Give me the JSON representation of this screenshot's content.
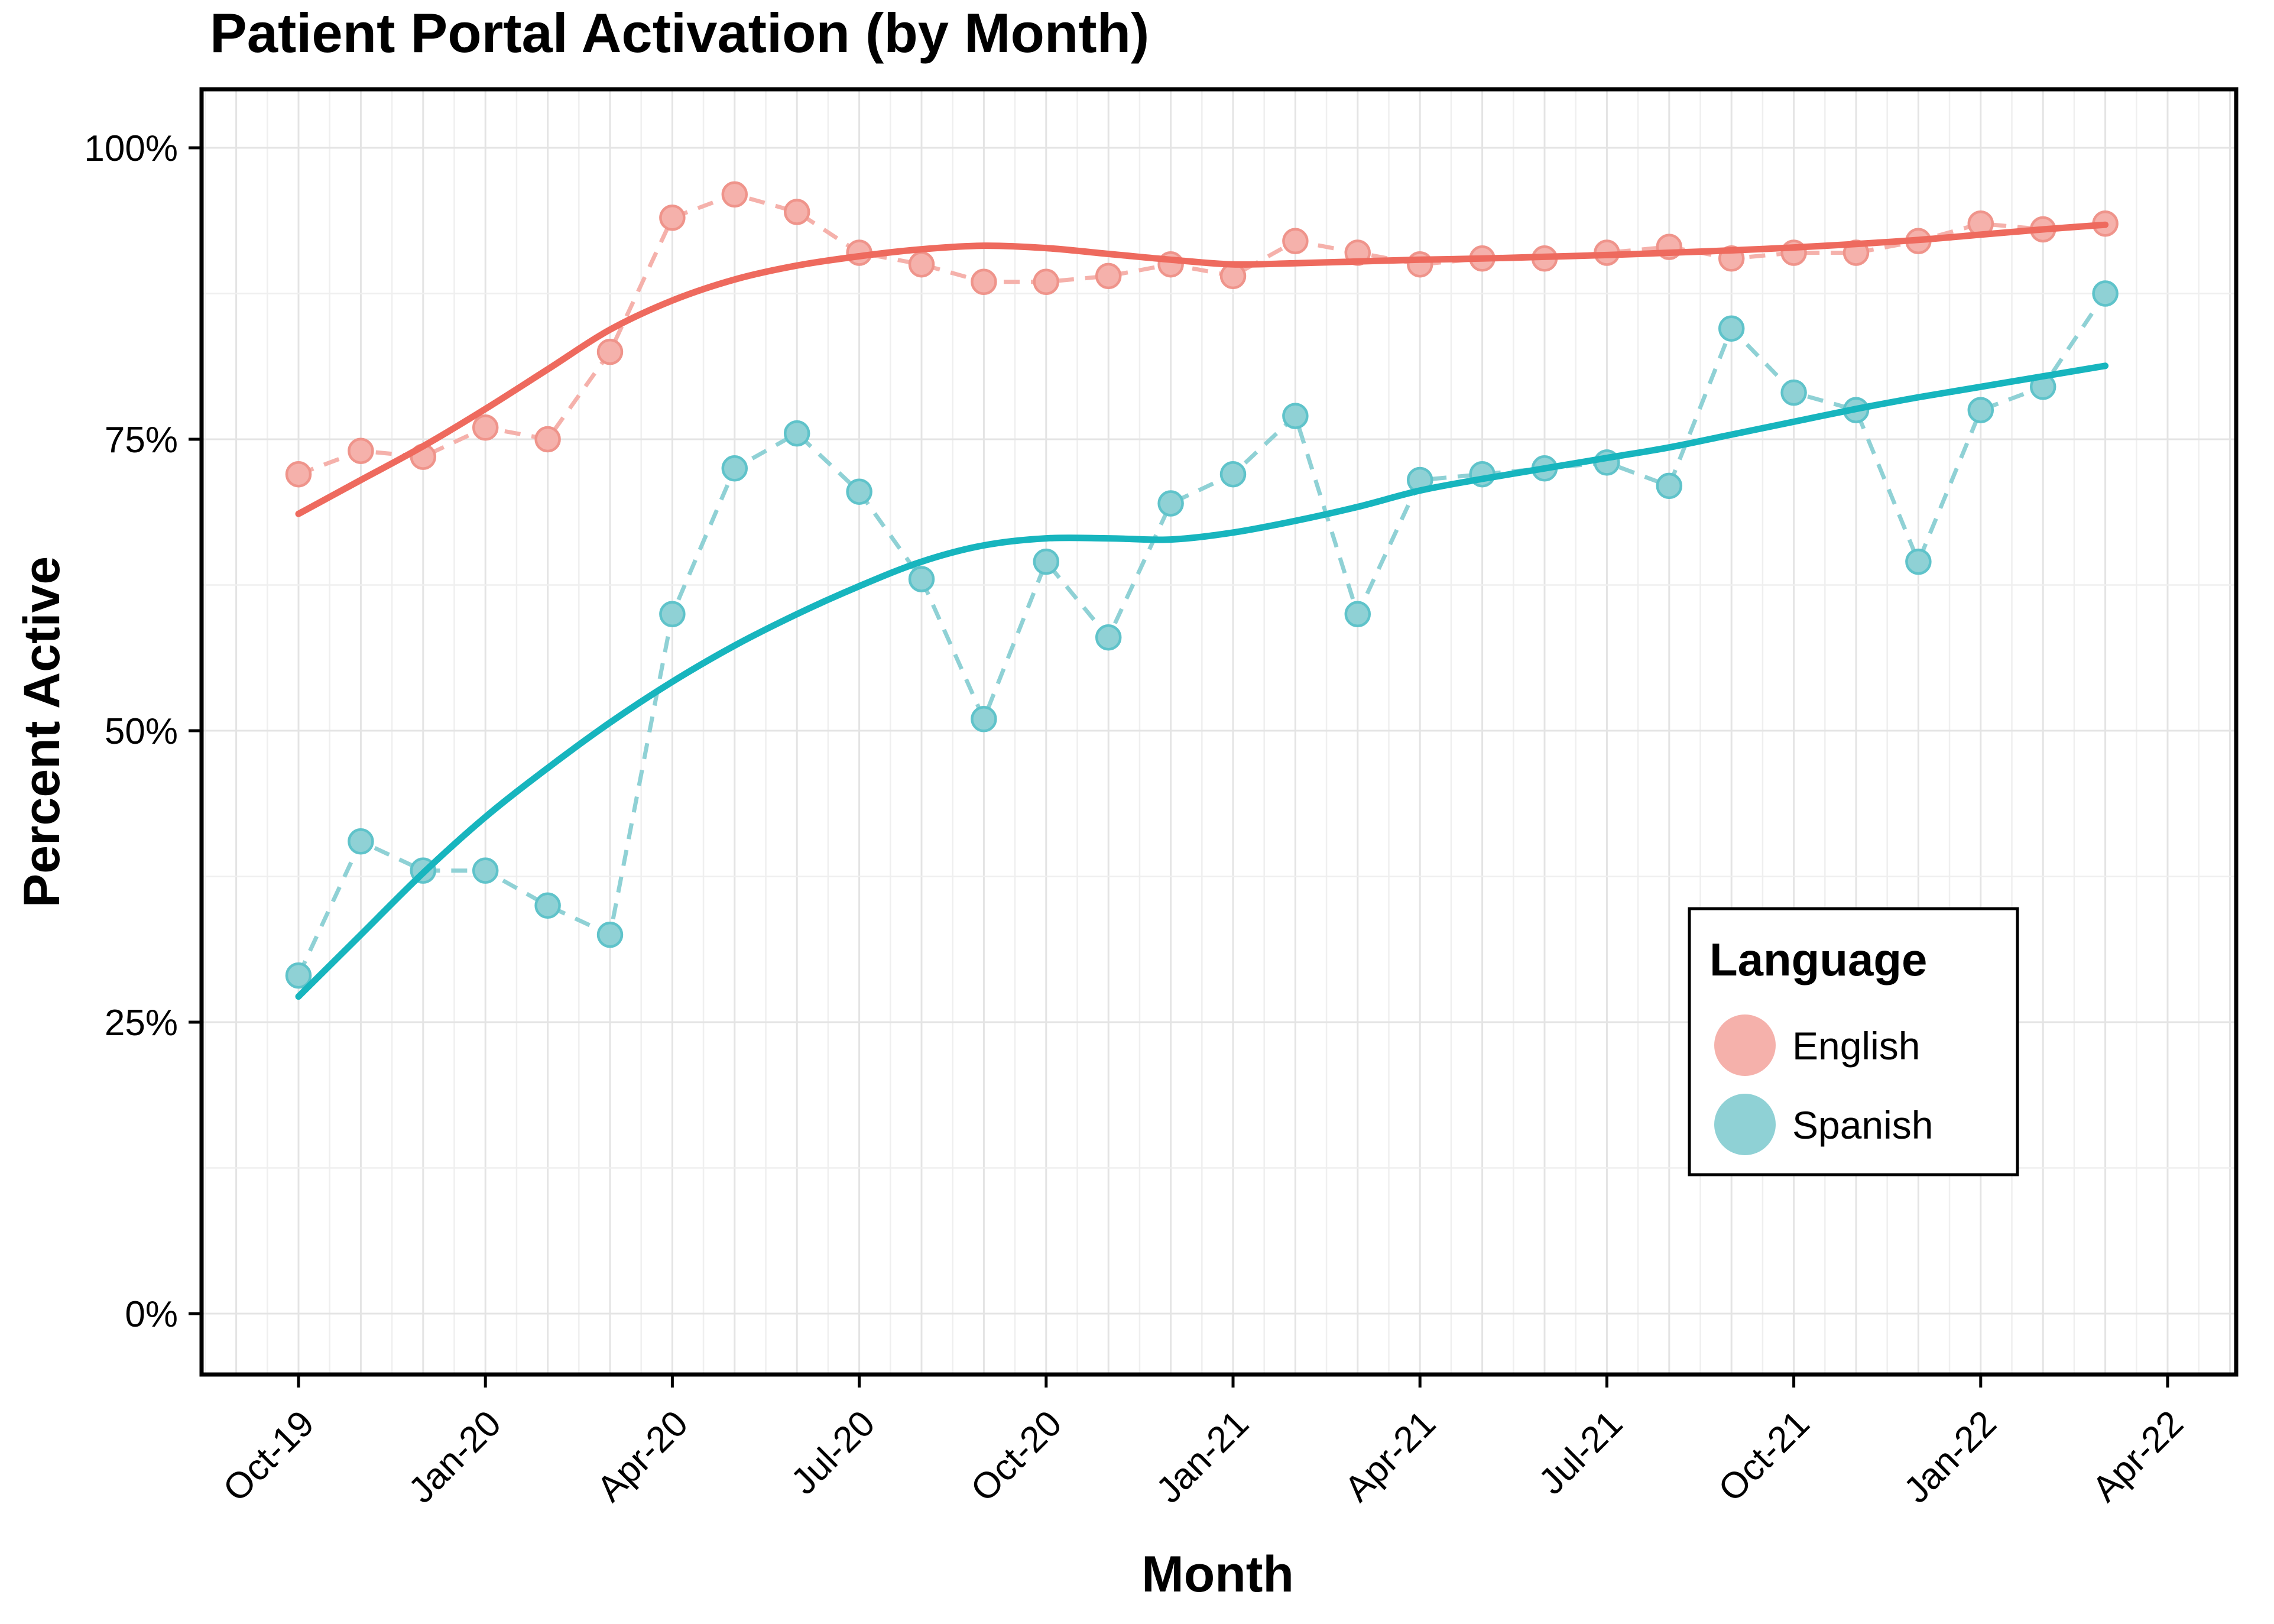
{
  "title": "Patient Portal Activation (by Month)",
  "x_axis": {
    "label": "Month"
  },
  "y_axis": {
    "label": "Percent Active"
  },
  "legend": {
    "title": "Language",
    "entries": [
      {
        "label": "English",
        "series": "English"
      },
      {
        "label": "Spanish",
        "series": "Spanish"
      }
    ],
    "position": "right-center"
  },
  "chart_data": {
    "type": "line",
    "title": "Patient Portal Activation (by Month)",
    "xlabel": "Month",
    "ylabel": "Percent Active",
    "ylim": [
      0,
      100
    ],
    "grid": "on",
    "y_tick_values": [
      0,
      25,
      50,
      75,
      100
    ],
    "y_tick_labels": [
      "0%",
      "25%",
      "50%",
      "75%",
      "100%"
    ],
    "x_tick_month_indices": [
      0,
      3,
      6,
      9,
      12,
      15,
      18,
      21,
      24,
      27,
      30
    ],
    "x_tick_labels": [
      "Oct-19",
      "Jan-20",
      "Apr-20",
      "Jul-20",
      "Oct-20",
      "Jan-21",
      "Apr-21",
      "Jul-21",
      "Oct-21",
      "Jan-22",
      "Apr-22"
    ],
    "categories": [
      "Oct-19",
      "Nov-19",
      "Dec-19",
      "Jan-20",
      "Feb-20",
      "Mar-20",
      "Apr-20",
      "May-20",
      "Jun-20",
      "Jul-20",
      "Aug-20",
      "Sep-20",
      "Oct-20",
      "Nov-20",
      "Dec-20",
      "Jan-21",
      "Feb-21",
      "Mar-21",
      "Apr-21",
      "May-21",
      "Jun-21",
      "Jul-21",
      "Aug-21",
      "Sep-21",
      "Oct-21",
      "Nov-21",
      "Dec-21",
      "Jan-22",
      "Feb-22",
      "Mar-22"
    ],
    "series": [
      {
        "name": "English",
        "points": [
          72,
          74,
          73.5,
          76,
          75,
          82.5,
          94,
          96,
          94.5,
          91,
          90,
          88.5,
          88.5,
          89,
          90,
          89,
          92,
          91,
          90,
          90.5,
          90.5,
          91,
          91.5,
          90.5,
          91,
          91,
          92,
          93.5,
          93,
          93.5
        ],
        "trend": [
          68.6,
          71.5,
          74.4,
          77.6,
          81.0,
          84.4,
          86.9,
          88.7,
          89.9,
          90.7,
          91.3,
          91.6,
          91.4,
          90.9,
          90.4,
          90.0,
          90.1,
          90.25,
          90.4,
          90.5,
          90.65,
          90.8,
          91.0,
          91.2,
          91.45,
          91.75,
          92.1,
          92.55,
          93.0,
          93.4
        ]
      },
      {
        "name": "Spanish",
        "points": [
          29,
          40.5,
          38,
          38,
          35,
          32.5,
          60,
          72.5,
          75.5,
          70.5,
          63,
          51,
          64.5,
          58,
          69.5,
          72,
          77,
          60,
          71.5,
          72,
          72.5,
          73,
          71,
          84.5,
          79,
          77.5,
          64.5,
          77.5,
          79.5,
          87.5
        ],
        "trend": [
          27.2,
          32.5,
          37.8,
          42.6,
          46.8,
          50.7,
          54.2,
          57.3,
          60.0,
          62.4,
          64.5,
          65.9,
          66.5,
          66.5,
          66.4,
          67.0,
          68.0,
          69.2,
          70.6,
          71.6,
          72.5,
          73.4,
          74.3,
          75.4,
          76.5,
          77.6,
          78.6,
          79.5,
          80.4,
          81.3
        ]
      }
    ]
  },
  "colors": {
    "english_line": "#EE6A5E",
    "english_point_fill": "#F5B1AB",
    "english_point_ring": "#EF948B",
    "spanish_line": "#17B5BE",
    "spanish_point_fill": "#8FD1D5",
    "spanish_point_ring": "#5FC3CA",
    "grid_major": "#E4E4E4",
    "grid_minor": "#EFEFEF",
    "panel_border": "#000000",
    "background": "#FFFFFF"
  }
}
